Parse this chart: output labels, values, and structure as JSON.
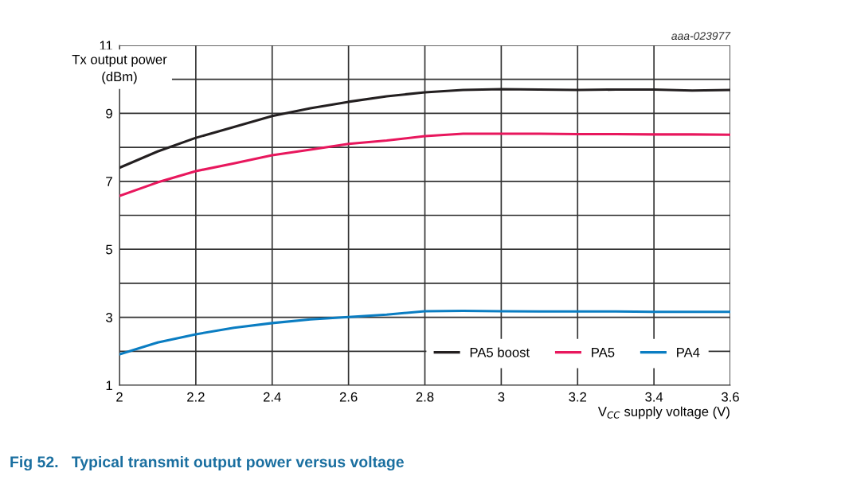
{
  "chart_data": {
    "type": "line",
    "title": "Fig 52.   Typical transmit output power versus voltage",
    "xlabel": "V$_{CC}$ supply voltage (V)",
    "ylabel": "Tx output power\n(dBm)",
    "annotations": [
      "aaa-023977"
    ],
    "x": [
      2.0,
      2.1,
      2.2,
      2.3,
      2.4,
      2.5,
      2.6,
      2.7,
      2.8,
      2.9,
      3.0,
      3.1,
      3.2,
      3.3,
      3.4,
      3.5,
      3.6
    ],
    "series": [
      {
        "name": "PA5 boost",
        "color": "#231f20",
        "values": [
          7.4,
          7.88,
          8.28,
          8.6,
          8.92,
          9.15,
          9.34,
          9.5,
          9.62,
          9.69,
          9.71,
          9.7,
          9.69,
          9.7,
          9.7,
          9.67,
          9.69
        ]
      },
      {
        "name": "PA5",
        "color": "#e8175d",
        "values": [
          6.57,
          6.97,
          7.3,
          7.53,
          7.77,
          7.93,
          8.1,
          8.2,
          8.33,
          8.4,
          8.4,
          8.4,
          8.39,
          8.39,
          8.38,
          8.38,
          8.37
        ]
      },
      {
        "name": "PA4",
        "color": "#0a7dc2",
        "values": [
          1.91,
          2.26,
          2.5,
          2.69,
          2.83,
          2.94,
          3.01,
          3.08,
          3.18,
          3.19,
          3.18,
          3.17,
          3.17,
          3.17,
          3.16,
          3.16,
          3.16
        ]
      }
    ],
    "xlim": [
      2,
      3.6
    ],
    "xticks": [
      2,
      2.2,
      2.4,
      2.6,
      2.8,
      3,
      3.2,
      3.4,
      3.6
    ],
    "ylim": [
      1,
      11
    ],
    "yticks": [
      1,
      {
        "value": 2,
        "label": null
      },
      3,
      {
        "value": 4,
        "label": null
      },
      5,
      {
        "value": 6,
        "label": null
      },
      7,
      {
        "value": 8,
        "label": null
      },
      9,
      {
        "value": 10,
        "label": null
      },
      11
    ],
    "grid": true,
    "legend": "bottom right",
    "marker": "none",
    "line_style": "solid"
  }
}
